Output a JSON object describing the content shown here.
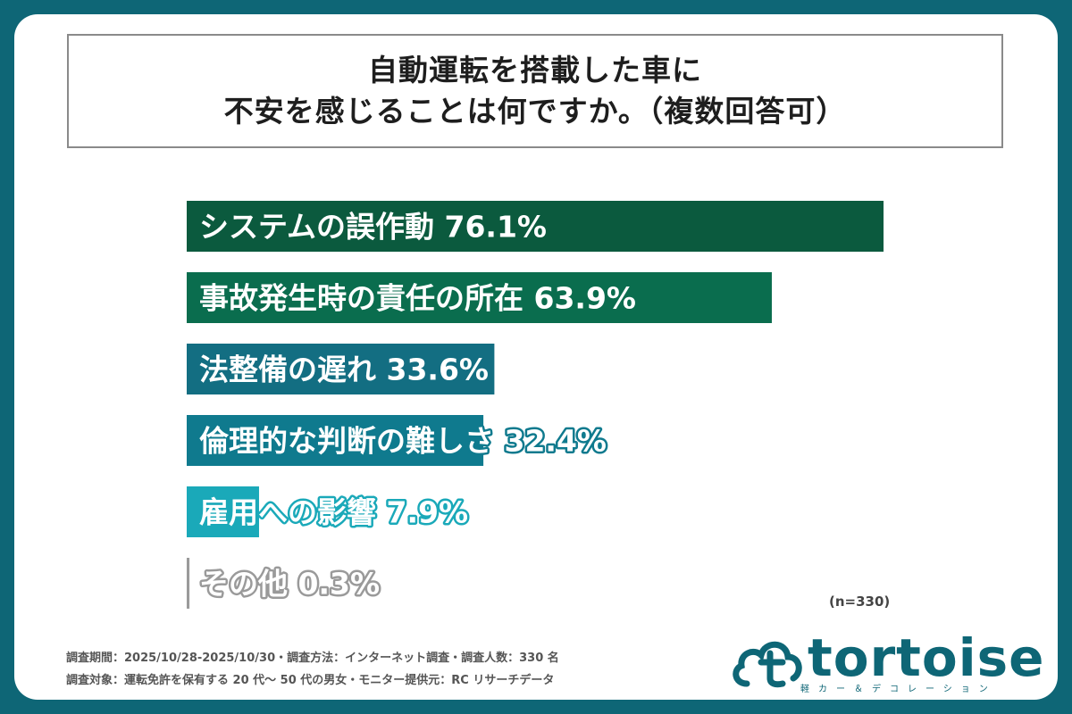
{
  "title": {
    "line1": "自動運転を搭載した車に",
    "line2": "不安を感じることは何ですか。（複数回答可）"
  },
  "chart_data": {
    "type": "bar",
    "orientation": "horizontal",
    "categories": [
      "システムの誤作動",
      "事故発生時の責任の所在",
      "法整備の遅れ",
      "倫理的な判断の難しさ",
      "雇用への影響",
      "その他"
    ],
    "values": [
      76.1,
      63.9,
      33.6,
      32.4,
      7.9,
      0.3
    ],
    "value_labels": [
      "76.1%",
      "63.9%",
      "33.6%",
      "32.4%",
      "7.9%",
      "0.3%"
    ],
    "colors": [
      "#0b5a3e",
      "#0a6d4e",
      "#136e82",
      "#0f7a8e",
      "#1aa9b9",
      "#9a9a9a"
    ],
    "xlim": [
      0,
      100
    ],
    "sample_note": "(n=330)"
  },
  "footer": {
    "line1": "調査期間：2025/10/28-2025/10/30・調査方法：インターネット調査・調査人数：330 名",
    "line2": "調査対象：運転免許を保有する 20 代〜 50 代の男女・モニター提供元：RC リサーチデータ"
  },
  "logo": {
    "text": "tortoise",
    "sub": "軽カー＆デコレーション",
    "icon": "cloud-t-logo-icon",
    "color": "#0e6676"
  }
}
